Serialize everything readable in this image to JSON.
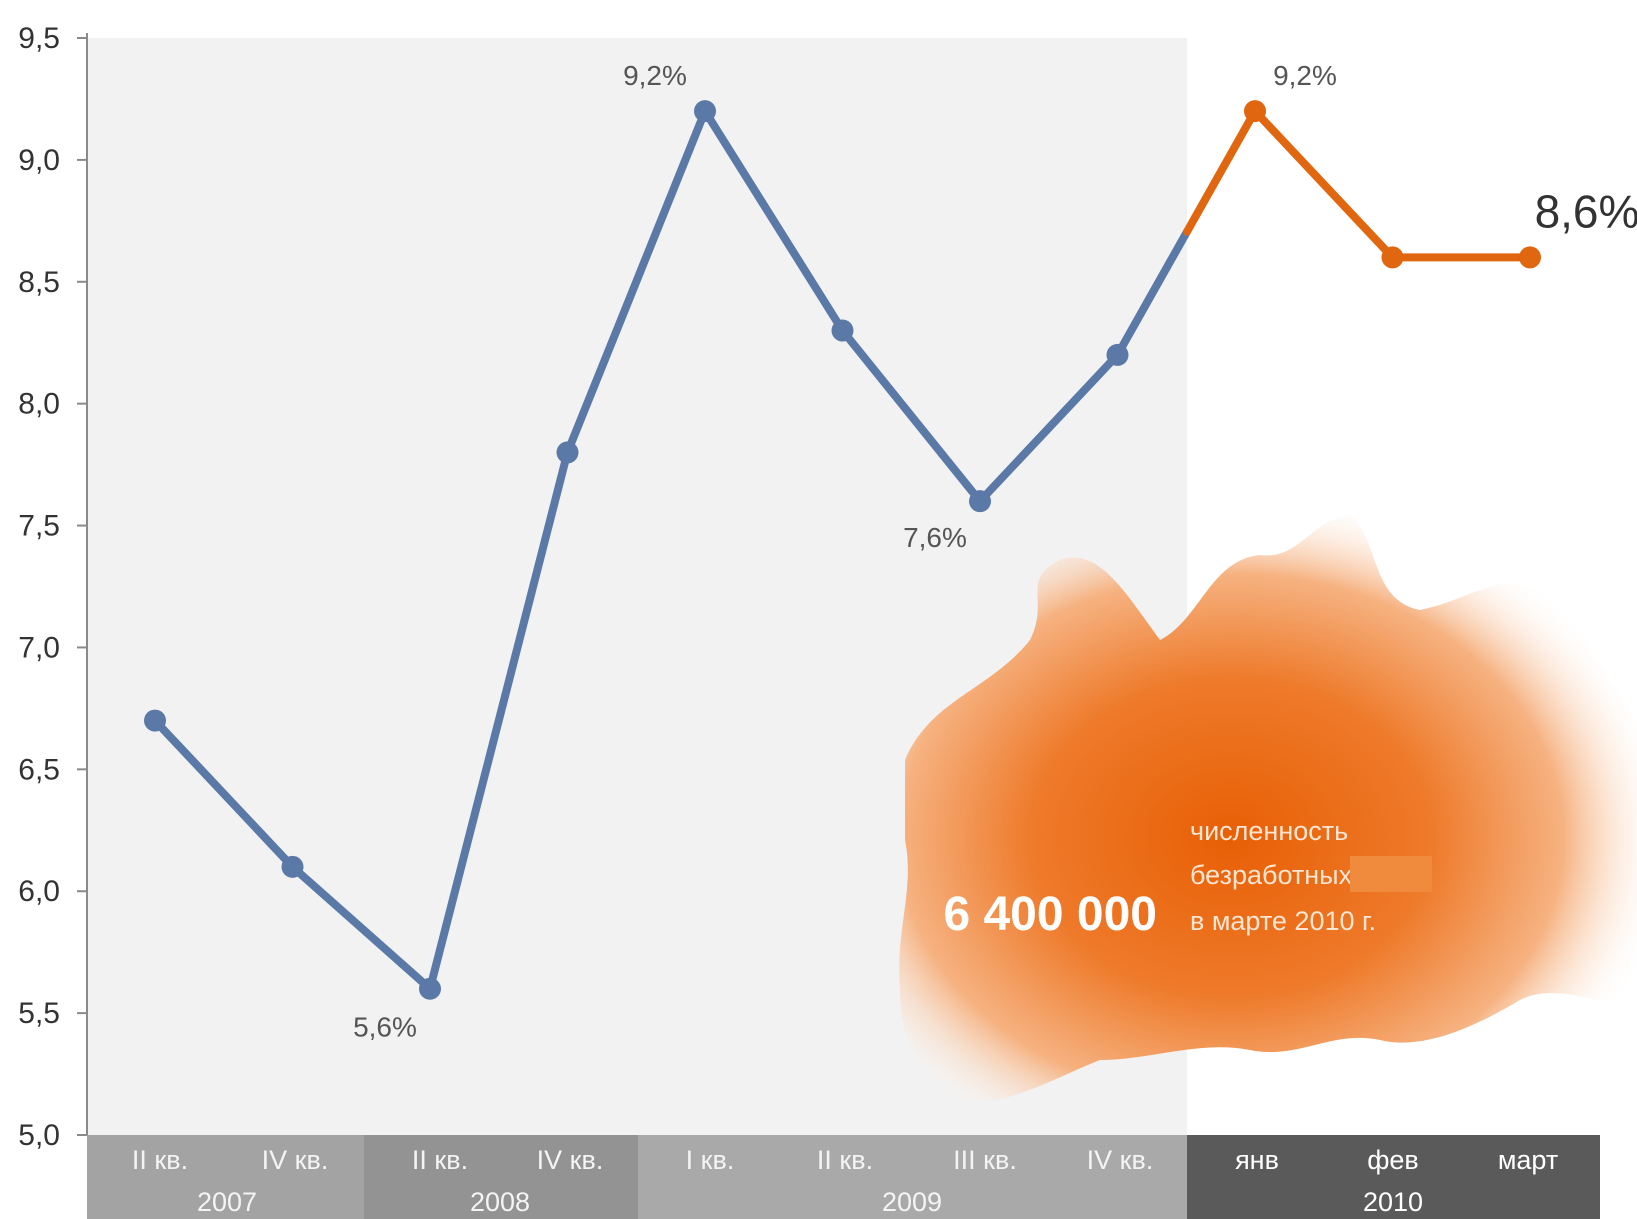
{
  "chart_data": {
    "type": "line",
    "ylim": [
      5.0,
      9.5
    ],
    "y_ticks": [
      "5,0",
      "5,5",
      "6,0",
      "6,5",
      "7,0",
      "7,5",
      "8,0",
      "8,5",
      "9,0",
      "9,5"
    ],
    "x_positions": [
      "",
      "II кв.",
      "",
      "IV кв.",
      "",
      "II кв.",
      "",
      "IV кв.",
      "I кв.",
      "II кв.",
      "III кв.",
      "IV кв.",
      "янв",
      "фев",
      "март"
    ],
    "x_groups": [
      {
        "label": "2007",
        "tick_labels": [
          "II кв.",
          "IV кв."
        ]
      },
      {
        "label": "2008",
        "tick_labels": [
          "II кв.",
          "IV кв."
        ]
      },
      {
        "label": "2009",
        "tick_labels": [
          "I кв.",
          "II кв.",
          "III кв.",
          "IV кв."
        ]
      },
      {
        "label": "2010",
        "tick_labels": [
          "янв",
          "фев",
          "март"
        ]
      }
    ],
    "series": [
      {
        "color": "#5b79a6",
        "points": [
          {
            "x": 0,
            "y": 6.7
          },
          {
            "x": 1,
            "y": 6.1
          },
          {
            "x": 2,
            "y": 5.6
          },
          {
            "x": 3,
            "y": 7.8
          },
          {
            "x": 4,
            "y": 9.2
          },
          {
            "x": 5,
            "y": 8.3
          },
          {
            "x": 6,
            "y": 7.6
          },
          {
            "x": 7,
            "y": 8.2
          }
        ]
      },
      {
        "color": "#e0660f",
        "points": [
          {
            "x": 8,
            "y": 9.2
          },
          {
            "x": 9,
            "y": 8.6
          },
          {
            "x": 10,
            "y": 8.6
          }
        ]
      }
    ],
    "data_labels": [
      {
        "x": 2,
        "y": 5.6,
        "text": "5,6%"
      },
      {
        "x": 4,
        "y": 9.2,
        "text": "9,2%"
      },
      {
        "x": 6,
        "y": 7.6,
        "text": "7,6%"
      },
      {
        "x": 8,
        "y": 9.2,
        "text": "9,2%"
      },
      {
        "x": 10,
        "y": 8.6,
        "text": "8,6%"
      }
    ],
    "colors": {
      "plot_bg_2007_2009": "#f2f2f2",
      "band_2007": "#a3a3a3",
      "band_2008": "#939393",
      "band_2009": "#a9a9a9",
      "band_2010": "#5a5a5a",
      "map_orange": "#ea6a10"
    }
  },
  "callout": {
    "value": "6 400 000",
    "line1": "численность",
    "line2": "безработных",
    "line3": "в марте 2010 г."
  }
}
